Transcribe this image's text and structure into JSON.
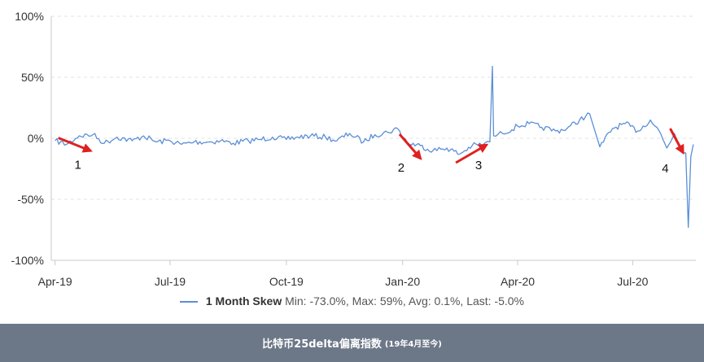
{
  "colors": {
    "line": "#5b8fd6",
    "arrow": "#e02020",
    "axis": "#c9c9c9",
    "grid": "#e3e3e3",
    "caption_bg": "#6c7787"
  },
  "legend": {
    "series_name": "1 Month Skew",
    "stats": "Min: -73.0%, Max: 59%, Avg: 0.1%, Last: -5.0%"
  },
  "caption": {
    "title": "比特币25delta偏离指数",
    "subtitle": "(19年4月至今)"
  },
  "chart_data": {
    "type": "line",
    "title": "",
    "xlabel": "",
    "ylabel": "",
    "ylim": [
      -100,
      100
    ],
    "xlim": [
      "2019-03-29",
      "2020-08-20"
    ],
    "y_ticks": [
      "100%",
      "50%",
      "0%",
      "-50%",
      "-100%"
    ],
    "x_ticks": [
      "Apr-19",
      "Jul-19",
      "Oct-19",
      "Jan-20",
      "Apr-20",
      "Jul-20"
    ],
    "grid": true,
    "legend_position": "bottom",
    "series": [
      {
        "name": "1 Month Skew",
        "x": [
          "2019-04-01",
          "2019-04-10",
          "2019-04-20",
          "2019-05-01",
          "2019-05-10",
          "2019-05-20",
          "2019-06-01",
          "2019-06-10",
          "2019-06-20",
          "2019-07-01",
          "2019-07-10",
          "2019-07-20",
          "2019-08-01",
          "2019-08-10",
          "2019-08-20",
          "2019-09-01",
          "2019-09-10",
          "2019-09-20",
          "2019-10-01",
          "2019-10-10",
          "2019-10-20",
          "2019-11-01",
          "2019-11-10",
          "2019-11-20",
          "2019-12-01",
          "2019-12-10",
          "2019-12-20",
          "2019-12-28",
          "2020-01-05",
          "2020-01-15",
          "2020-01-25",
          "2020-02-05",
          "2020-02-15",
          "2020-02-25",
          "2020-03-05",
          "2020-03-10",
          "2020-03-12",
          "2020-03-13",
          "2020-03-20",
          "2020-04-01",
          "2020-04-10",
          "2020-04-20",
          "2020-05-01",
          "2020-05-10",
          "2020-05-20",
          "2020-05-28",
          "2020-06-05",
          "2020-06-15",
          "2020-06-25",
          "2020-07-05",
          "2020-07-15",
          "2020-07-22",
          "2020-07-28",
          "2020-08-03",
          "2020-08-08",
          "2020-08-12",
          "2020-08-14",
          "2020-08-16",
          "2020-08-18"
        ],
        "values": [
          -2,
          -5,
          2,
          3,
          -4,
          1,
          -2,
          2,
          -3,
          -2,
          -5,
          -3,
          -3,
          -2,
          -4,
          -2,
          -1,
          1,
          -1,
          1,
          2,
          1,
          -2,
          4,
          -3,
          3,
          5,
          8,
          -4,
          -6,
          -10,
          -8,
          -13,
          -6,
          -5,
          -3,
          59,
          2,
          4,
          10,
          12,
          9,
          6,
          8,
          15,
          20,
          -7,
          8,
          12,
          6,
          15,
          6,
          -8,
          4,
          -8,
          -12,
          -73,
          -15,
          -5
        ]
      }
    ],
    "annotations": [
      {
        "label": "1",
        "x": "2019-04-10",
        "y": -5
      },
      {
        "label": "2",
        "x": "2020-01-05",
        "y": -10
      },
      {
        "label": "3",
        "x": "2020-03-05",
        "y": -8
      },
      {
        "label": "4",
        "x": "2020-08-10",
        "y": -12
      }
    ]
  }
}
